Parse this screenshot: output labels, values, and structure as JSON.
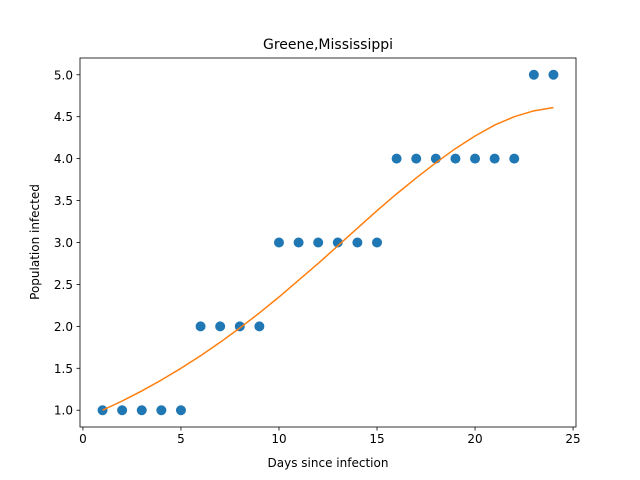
{
  "chart_data": {
    "type": "scatter",
    "title": "Greene,Mississippi",
    "xlabel": "Days since infection",
    "ylabel": "Population infected",
    "xlim": [
      -0.15,
      25.15
    ],
    "ylim": [
      0.8,
      5.2
    ],
    "xticks": [
      0,
      5,
      10,
      15,
      20,
      25
    ],
    "xtick_labels": [
      "0",
      "5",
      "10",
      "15",
      "20",
      "25"
    ],
    "yticks": [
      1.0,
      1.5,
      2.0,
      2.5,
      3.0,
      3.5,
      4.0,
      4.5,
      5.0
    ],
    "ytick_labels": [
      "1.0",
      "1.5",
      "2.0",
      "2.5",
      "3.0",
      "3.5",
      "4.0",
      "4.5",
      "5.0"
    ],
    "grid": false,
    "series": [
      {
        "type": "scatter",
        "color": "#1f77b4",
        "x": [
          1,
          2,
          3,
          4,
          5,
          6,
          7,
          8,
          9,
          10,
          11,
          12,
          13,
          14,
          15,
          16,
          17,
          18,
          19,
          20,
          21,
          22,
          23,
          24
        ],
        "y": [
          1,
          1,
          1,
          1,
          1,
          2,
          2,
          2,
          2,
          3,
          3,
          3,
          3,
          3,
          3,
          4,
          4,
          4,
          4,
          4,
          4,
          4,
          5,
          5
        ]
      },
      {
        "type": "line",
        "color": "#ff7f0e",
        "x": [
          1,
          2,
          3,
          4,
          5,
          6,
          7,
          8,
          9,
          10,
          11,
          12,
          13,
          14,
          15,
          16,
          17,
          18,
          19,
          20,
          21,
          22,
          23,
          24
        ],
        "y": [
          1.0,
          1.11,
          1.23,
          1.36,
          1.5,
          1.65,
          1.81,
          1.98,
          2.16,
          2.35,
          2.55,
          2.75,
          2.96,
          3.17,
          3.38,
          3.58,
          3.77,
          3.95,
          4.12,
          4.27,
          4.4,
          4.5,
          4.57,
          4.61
        ]
      }
    ]
  }
}
